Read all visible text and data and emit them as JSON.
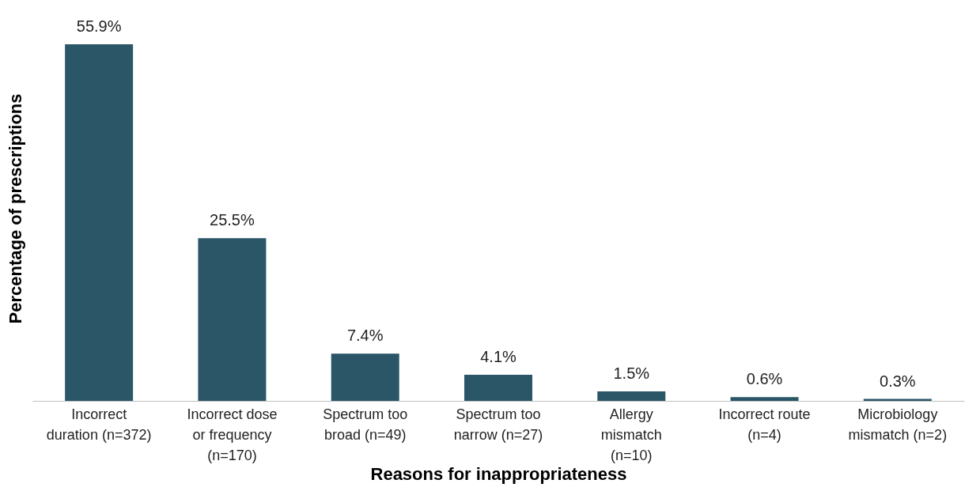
{
  "chart_data": {
    "type": "bar",
    "xlabel": "Reasons for inappropriateness",
    "ylabel": "Percentage of prescriptions",
    "categories": [
      "Incorrect\nduration (n=372)",
      "Incorrect dose\nor frequency\n(n=170)",
      "Spectrum too\nbroad (n=49)",
      "Spectrum too\nnarrow (n=27)",
      "Allergy\nmismatch\n(n=10)",
      "Incorrect route\n(n=4)",
      "Microbiology\nmismatch (n=2)"
    ],
    "values": [
      55.9,
      25.5,
      7.4,
      4.1,
      1.5,
      0.6,
      0.3
    ],
    "value_labels": [
      "55.9%",
      "25.5%",
      "7.4%",
      "4.1%",
      "1.5%",
      "0.6%",
      "0.3%"
    ],
    "color": "#2b5668",
    "grid": false
  }
}
